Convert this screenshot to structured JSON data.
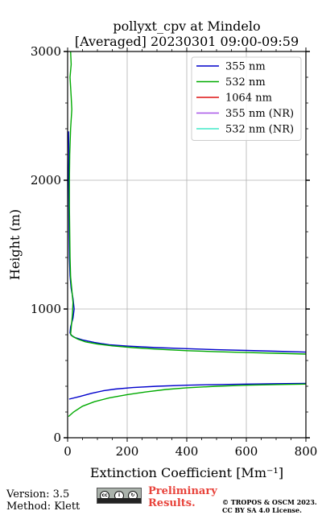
{
  "chart_data": {
    "type": "line",
    "title": "pollyxt_cpv at Mindelo",
    "subtitle": "[Averaged] 20230301 09:00-09:59",
    "xlabel": "Extinction Coefficient [Mm⁻¹]",
    "ylabel": "Height (m)",
    "xlim": [
      0,
      800
    ],
    "ylim": [
      0,
      3000
    ],
    "xticks": [
      "0",
      "200",
      "400",
      "600",
      "800"
    ],
    "yticks": [
      "0",
      "1000",
      "2000",
      "3000"
    ],
    "grid": true,
    "legend_position": "top-right",
    "series": [
      {
        "name": "355 nm",
        "color": "#0000cc",
        "points": [
          [
            5,
            300
          ],
          [
            40,
            320
          ],
          [
            80,
            345
          ],
          [
            120,
            365
          ],
          [
            160,
            378
          ],
          [
            220,
            390
          ],
          [
            300,
            400
          ],
          [
            400,
            408
          ],
          [
            500,
            413
          ],
          [
            600,
            417
          ],
          [
            700,
            420
          ],
          [
            800,
            422
          ],
          [
            null,
            null
          ],
          [
            800,
            665
          ],
          [
            700,
            672
          ],
          [
            600,
            678
          ],
          [
            500,
            684
          ],
          [
            400,
            692
          ],
          [
            300,
            700
          ],
          [
            200,
            712
          ],
          [
            140,
            722
          ],
          [
            90,
            740
          ],
          [
            50,
            760
          ],
          [
            25,
            778
          ],
          [
            12,
            795
          ],
          [
            8,
            815
          ],
          [
            10,
            860
          ],
          [
            18,
            930
          ],
          [
            22,
            1000
          ],
          [
            18,
            1080
          ],
          [
            12,
            1160
          ],
          [
            8,
            1260
          ],
          [
            6,
            1400
          ],
          [
            5,
            1600
          ],
          [
            4,
            1800
          ],
          [
            3,
            2050
          ],
          [
            4,
            2200
          ],
          [
            3,
            2380
          ]
        ]
      },
      {
        "name": "532 nm",
        "color": "#00aa00",
        "points": [
          [
            3,
            165
          ],
          [
            20,
            200
          ],
          [
            50,
            245
          ],
          [
            90,
            280
          ],
          [
            140,
            310
          ],
          [
            200,
            335
          ],
          [
            260,
            355
          ],
          [
            330,
            375
          ],
          [
            400,
            388
          ],
          [
            500,
            400
          ],
          [
            600,
            408
          ],
          [
            700,
            413
          ],
          [
            800,
            417
          ],
          [
            null,
            null
          ],
          [
            800,
            650
          ],
          [
            700,
            656
          ],
          [
            600,
            662
          ],
          [
            500,
            668
          ],
          [
            400,
            676
          ],
          [
            300,
            688
          ],
          [
            220,
            700
          ],
          [
            150,
            714
          ],
          [
            100,
            728
          ],
          [
            60,
            745
          ],
          [
            35,
            765
          ],
          [
            18,
            785
          ],
          [
            10,
            805
          ],
          [
            12,
            850
          ],
          [
            16,
            950
          ],
          [
            18,
            1050
          ],
          [
            14,
            1150
          ],
          [
            10,
            1250
          ],
          [
            8,
            1400
          ],
          [
            7,
            1600
          ],
          [
            6,
            1800
          ],
          [
            6,
            2000
          ],
          [
            7,
            2200
          ],
          [
            10,
            2400
          ],
          [
            14,
            2550
          ],
          [
            12,
            2650
          ],
          [
            8,
            2800
          ],
          [
            12,
            2900
          ],
          [
            10,
            3000
          ]
        ]
      },
      {
        "name": "1064 nm",
        "color": "#dd1111",
        "points": []
      },
      {
        "name": "355 nm (NR)",
        "color": "#a855e8",
        "points": []
      },
      {
        "name": "532 nm (NR)",
        "color": "#40e8c8",
        "points": []
      }
    ]
  },
  "footer": {
    "version": "Version: 3.5",
    "method": "Method: Klett",
    "preliminary_line1": "Preliminary",
    "preliminary_line2": "Results.",
    "copyright_line1": "© TROPOS & OSCM 2023.",
    "copyright_line2": "CC BY SA 4.0 License."
  }
}
